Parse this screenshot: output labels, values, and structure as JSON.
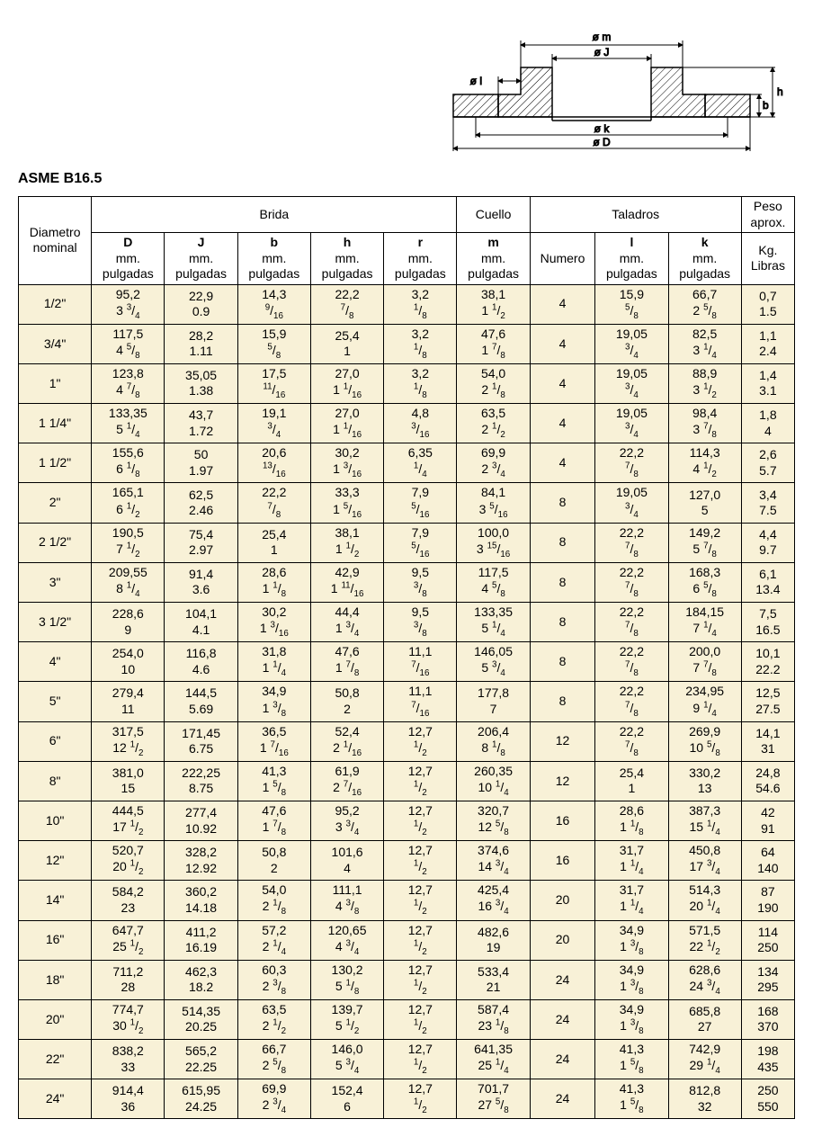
{
  "title": "ASME B16.5",
  "diagram_labels": {
    "om": "ø m",
    "oJ": "ø J",
    "ol": "ø l",
    "ok": "ø k",
    "oD": "ø D",
    "b": "b",
    "h": "h"
  },
  "headers": {
    "dia": "Diametro\nnominal",
    "brida": "Brida",
    "cuello": "Cuello",
    "taladros": "Taladros",
    "peso": "Peso\naprox.",
    "cols": {
      "D": {
        "sym": "D",
        "unit": "mm.\npulgadas"
      },
      "J": {
        "sym": "J",
        "unit": "mm.\npulgadas"
      },
      "b": {
        "sym": "b",
        "unit": "mm.\npulgadas"
      },
      "h": {
        "sym": "h",
        "unit": "mm.\npulgadas"
      },
      "r": {
        "sym": "r",
        "unit": "mm.\npulgadas"
      },
      "m": {
        "sym": "m",
        "unit": "mm.\npulgadas"
      },
      "num": {
        "sym": "",
        "unit": "Numero"
      },
      "l": {
        "sym": "l",
        "unit": "mm.\npulgadas"
      },
      "k": {
        "sym": "k",
        "unit": "mm.\npulgadas"
      },
      "peso": {
        "sym": "",
        "unit": "Kg.\nLibras"
      }
    }
  },
  "rows": [
    {
      "nom": "1/2\"",
      "D": {
        "mm": "95,2",
        "in": "3 3/4"
      },
      "J": {
        "mm": "22,9",
        "in": "0.9"
      },
      "b": {
        "mm": "14,3",
        "in": "9/16"
      },
      "h": {
        "mm": "22,2",
        "in": "7/8"
      },
      "r": {
        "mm": "3,2",
        "in": "1/8"
      },
      "m": {
        "mm": "38,1",
        "in": "1 1/2"
      },
      "num": "4",
      "l": {
        "mm": "15,9",
        "in": "5/8"
      },
      "k": {
        "mm": "66,7",
        "in": "2 5/8"
      },
      "peso": {
        "kg": "0,7",
        "lb": "1.5"
      }
    },
    {
      "nom": "3/4\"",
      "D": {
        "mm": "117,5",
        "in": "4 5/8"
      },
      "J": {
        "mm": "28,2",
        "in": "1.11"
      },
      "b": {
        "mm": "15,9",
        "in": "5/8"
      },
      "h": {
        "mm": "25,4",
        "in": "1"
      },
      "r": {
        "mm": "3,2",
        "in": "1/8"
      },
      "m": {
        "mm": "47,6",
        "in": "1 7/8"
      },
      "num": "4",
      "l": {
        "mm": "19,05",
        "in": "3/4"
      },
      "k": {
        "mm": "82,5",
        "in": "3 1/4"
      },
      "peso": {
        "kg": "1,1",
        "lb": "2.4"
      }
    },
    {
      "nom": "1\"",
      "D": {
        "mm": "123,8",
        "in": "4 7/8"
      },
      "J": {
        "mm": "35,05",
        "in": "1.38"
      },
      "b": {
        "mm": "17,5",
        "in": "11/16"
      },
      "h": {
        "mm": "27,0",
        "in": "1 1/16"
      },
      "r": {
        "mm": "3,2",
        "in": "1/8"
      },
      "m": {
        "mm": "54,0",
        "in": "2 1/8"
      },
      "num": "4",
      "l": {
        "mm": "19,05",
        "in": "3/4"
      },
      "k": {
        "mm": "88,9",
        "in": "3 1/2"
      },
      "peso": {
        "kg": "1,4",
        "lb": "3.1"
      }
    },
    {
      "nom": "1 1/4\"",
      "D": {
        "mm": "133,35",
        "in": "5 1/4"
      },
      "J": {
        "mm": "43,7",
        "in": "1.72"
      },
      "b": {
        "mm": "19,1",
        "in": "3/4"
      },
      "h": {
        "mm": "27,0",
        "in": "1 1/16"
      },
      "r": {
        "mm": "4,8",
        "in": "3/16"
      },
      "m": {
        "mm": "63,5",
        "in": "2 1/2"
      },
      "num": "4",
      "l": {
        "mm": "19,05",
        "in": "3/4"
      },
      "k": {
        "mm": "98,4",
        "in": "3 7/8"
      },
      "peso": {
        "kg": "1,8",
        "lb": "4"
      }
    },
    {
      "nom": "1 1/2\"",
      "D": {
        "mm": "155,6",
        "in": "6 1/8"
      },
      "J": {
        "mm": "50",
        "in": "1.97"
      },
      "b": {
        "mm": "20,6",
        "in": "13/16"
      },
      "h": {
        "mm": "30,2",
        "in": "1 3/16"
      },
      "r": {
        "mm": "6,35",
        "in": "1/4"
      },
      "m": {
        "mm": "69,9",
        "in": "2 3/4"
      },
      "num": "4",
      "l": {
        "mm": "22,2",
        "in": "7/8"
      },
      "k": {
        "mm": "114,3",
        "in": "4 1/2"
      },
      "peso": {
        "kg": "2,6",
        "lb": "5.7"
      }
    },
    {
      "nom": "2\"",
      "D": {
        "mm": "165,1",
        "in": "6 1/2"
      },
      "J": {
        "mm": "62,5",
        "in": "2.46"
      },
      "b": {
        "mm": "22,2",
        "in": "7/8"
      },
      "h": {
        "mm": "33,3",
        "in": "1 5/16"
      },
      "r": {
        "mm": "7,9",
        "in": "5/16"
      },
      "m": {
        "mm": "84,1",
        "in": "3 5/16"
      },
      "num": "8",
      "l": {
        "mm": "19,05",
        "in": "3/4"
      },
      "k": {
        "mm": "127,0",
        "in": "5"
      },
      "peso": {
        "kg": "3,4",
        "lb": "7.5"
      }
    },
    {
      "nom": "2 1/2\"",
      "D": {
        "mm": "190,5",
        "in": "7 1/2"
      },
      "J": {
        "mm": "75,4",
        "in": "2.97"
      },
      "b": {
        "mm": "25,4",
        "in": "1"
      },
      "h": {
        "mm": "38,1",
        "in": "1 1/2"
      },
      "r": {
        "mm": "7,9",
        "in": "5/16"
      },
      "m": {
        "mm": "100,0",
        "in": "3 15/16"
      },
      "num": "8",
      "l": {
        "mm": "22,2",
        "in": "7/8"
      },
      "k": {
        "mm": "149,2",
        "in": "5 7/8"
      },
      "peso": {
        "kg": "4,4",
        "lb": "9.7"
      }
    },
    {
      "nom": "3\"",
      "D": {
        "mm": "209,55",
        "in": "8 1/4"
      },
      "J": {
        "mm": "91,4",
        "in": "3.6"
      },
      "b": {
        "mm": "28,6",
        "in": "1 1/8"
      },
      "h": {
        "mm": "42,9",
        "in": "1 11/16"
      },
      "r": {
        "mm": "9,5",
        "in": "3/8"
      },
      "m": {
        "mm": "117,5",
        "in": "4 5/8"
      },
      "num": "8",
      "l": {
        "mm": "22,2",
        "in": "7/8"
      },
      "k": {
        "mm": "168,3",
        "in": "6 5/8"
      },
      "peso": {
        "kg": "6,1",
        "lb": "13.4"
      }
    },
    {
      "nom": "3 1/2\"",
      "D": {
        "mm": "228,6",
        "in": "9"
      },
      "J": {
        "mm": "104,1",
        "in": "4.1"
      },
      "b": {
        "mm": "30,2",
        "in": "1 3/16"
      },
      "h": {
        "mm": "44,4",
        "in": "1 3/4"
      },
      "r": {
        "mm": "9,5",
        "in": "3/8"
      },
      "m": {
        "mm": "133,35",
        "in": "5 1/4"
      },
      "num": "8",
      "l": {
        "mm": "22,2",
        "in": "7/8"
      },
      "k": {
        "mm": "184,15",
        "in": "7 1/4"
      },
      "peso": {
        "kg": "7,5",
        "lb": "16.5"
      }
    },
    {
      "nom": "4\"",
      "D": {
        "mm": "254,0",
        "in": "10"
      },
      "J": {
        "mm": "116,8",
        "in": "4.6"
      },
      "b": {
        "mm": "31,8",
        "in": "1 1/4"
      },
      "h": {
        "mm": "47,6",
        "in": "1 7/8"
      },
      "r": {
        "mm": "11,1",
        "in": "7/16"
      },
      "m": {
        "mm": "146,05",
        "in": "5 3/4"
      },
      "num": "8",
      "l": {
        "mm": "22,2",
        "in": "7/8"
      },
      "k": {
        "mm": "200,0",
        "in": "7 7/8"
      },
      "peso": {
        "kg": "10,1",
        "lb": "22.2"
      }
    },
    {
      "nom": "5\"",
      "D": {
        "mm": "279,4",
        "in": "11"
      },
      "J": {
        "mm": "144,5",
        "in": "5.69"
      },
      "b": {
        "mm": "34,9",
        "in": "1 3/8"
      },
      "h": {
        "mm": "50,8",
        "in": "2"
      },
      "r": {
        "mm": "11,1",
        "in": "7/16"
      },
      "m": {
        "mm": "177,8",
        "in": "7"
      },
      "num": "8",
      "l": {
        "mm": "22,2",
        "in": "7/8"
      },
      "k": {
        "mm": "234,95",
        "in": "9 1/4"
      },
      "peso": {
        "kg": "12,5",
        "lb": "27.5"
      }
    },
    {
      "nom": "6\"",
      "D": {
        "mm": "317,5",
        "in": "12 1/2"
      },
      "J": {
        "mm": "171,45",
        "in": "6.75"
      },
      "b": {
        "mm": "36,5",
        "in": "1 7/16"
      },
      "h": {
        "mm": "52,4",
        "in": "2 1/16"
      },
      "r": {
        "mm": "12,7",
        "in": "1/2"
      },
      "m": {
        "mm": "206,4",
        "in": "8 1/8"
      },
      "num": "12",
      "l": {
        "mm": "22,2",
        "in": "7/8"
      },
      "k": {
        "mm": "269,9",
        "in": "10 5/8"
      },
      "peso": {
        "kg": "14,1",
        "lb": "31"
      }
    },
    {
      "nom": "8\"",
      "D": {
        "mm": "381,0",
        "in": "15"
      },
      "J": {
        "mm": "222,25",
        "in": "8.75"
      },
      "b": {
        "mm": "41,3",
        "in": "1 5/8"
      },
      "h": {
        "mm": "61,9",
        "in": "2 7/16"
      },
      "r": {
        "mm": "12,7",
        "in": "1/2"
      },
      "m": {
        "mm": "260,35",
        "in": "10 1/4"
      },
      "num": "12",
      "l": {
        "mm": "25,4",
        "in": "1"
      },
      "k": {
        "mm": "330,2",
        "in": "13"
      },
      "peso": {
        "kg": "24,8",
        "lb": "54.6"
      }
    },
    {
      "nom": "10\"",
      "D": {
        "mm": "444,5",
        "in": "17 1/2"
      },
      "J": {
        "mm": "277,4",
        "in": "10.92"
      },
      "b": {
        "mm": "47,6",
        "in": "1 7/8"
      },
      "h": {
        "mm": "95,2",
        "in": "3 3/4"
      },
      "r": {
        "mm": "12,7",
        "in": "1/2"
      },
      "m": {
        "mm": "320,7",
        "in": "12 5/8"
      },
      "num": "16",
      "l": {
        "mm": "28,6",
        "in": "1 1/8"
      },
      "k": {
        "mm": "387,3",
        "in": "15 1/4"
      },
      "peso": {
        "kg": "42",
        "lb": "91"
      }
    },
    {
      "nom": "12\"",
      "D": {
        "mm": "520,7",
        "in": "20 1/2"
      },
      "J": {
        "mm": "328,2",
        "in": "12.92"
      },
      "b": {
        "mm": "50,8",
        "in": "2"
      },
      "h": {
        "mm": "101,6",
        "in": "4"
      },
      "r": {
        "mm": "12,7",
        "in": "1/2"
      },
      "m": {
        "mm": "374,6",
        "in": "14 3/4"
      },
      "num": "16",
      "l": {
        "mm": "31,7",
        "in": "1 1/4"
      },
      "k": {
        "mm": "450,8",
        "in": "17 3/4"
      },
      "peso": {
        "kg": "64",
        "lb": "140"
      }
    },
    {
      "nom": "14\"",
      "D": {
        "mm": "584,2",
        "in": "23"
      },
      "J": {
        "mm": "360,2",
        "in": "14.18"
      },
      "b": {
        "mm": "54,0",
        "in": "2 1/8"
      },
      "h": {
        "mm": "111,1",
        "in": "4 3/8"
      },
      "r": {
        "mm": "12,7",
        "in": "1/2"
      },
      "m": {
        "mm": "425,4",
        "in": "16 3/4"
      },
      "num": "20",
      "l": {
        "mm": "31,7",
        "in": "1 1/4"
      },
      "k": {
        "mm": "514,3",
        "in": "20 1/4"
      },
      "peso": {
        "kg": "87",
        "lb": "190"
      }
    },
    {
      "nom": "16\"",
      "D": {
        "mm": "647,7",
        "in": "25 1/2"
      },
      "J": {
        "mm": "411,2",
        "in": "16.19"
      },
      "b": {
        "mm": "57,2",
        "in": "2 1/4"
      },
      "h": {
        "mm": "120,65",
        "in": "4 3/4"
      },
      "r": {
        "mm": "12,7",
        "in": "1/2"
      },
      "m": {
        "mm": "482,6",
        "in": "19"
      },
      "num": "20",
      "l": {
        "mm": "34,9",
        "in": "1 3/8"
      },
      "k": {
        "mm": "571,5",
        "in": "22 1/2"
      },
      "peso": {
        "kg": "114",
        "lb": "250"
      }
    },
    {
      "nom": "18\"",
      "D": {
        "mm": "711,2",
        "in": "28"
      },
      "J": {
        "mm": "462,3",
        "in": "18.2"
      },
      "b": {
        "mm": "60,3",
        "in": "2 3/8"
      },
      "h": {
        "mm": "130,2",
        "in": "5 1/8"
      },
      "r": {
        "mm": "12,7",
        "in": "1/2"
      },
      "m": {
        "mm": "533,4",
        "in": "21"
      },
      "num": "24",
      "l": {
        "mm": "34,9",
        "in": "1 3/8"
      },
      "k": {
        "mm": "628,6",
        "in": "24 3/4"
      },
      "peso": {
        "kg": "134",
        "lb": "295"
      }
    },
    {
      "nom": "20\"",
      "D": {
        "mm": "774,7",
        "in": "30 1/2"
      },
      "J": {
        "mm": "514,35",
        "in": "20.25"
      },
      "b": {
        "mm": "63,5",
        "in": "2 1/2"
      },
      "h": {
        "mm": "139,7",
        "in": "5 1/2"
      },
      "r": {
        "mm": "12,7",
        "in": "1/2"
      },
      "m": {
        "mm": "587,4",
        "in": "23 1/8"
      },
      "num": "24",
      "l": {
        "mm": "34,9",
        "in": "1 3/8"
      },
      "k": {
        "mm": "685,8",
        "in": "27"
      },
      "peso": {
        "kg": "168",
        "lb": "370"
      }
    },
    {
      "nom": "22\"",
      "D": {
        "mm": "838,2",
        "in": "33"
      },
      "J": {
        "mm": "565,2",
        "in": "22.25"
      },
      "b": {
        "mm": "66,7",
        "in": "2 5/8"
      },
      "h": {
        "mm": "146,0",
        "in": "5 3/4"
      },
      "r": {
        "mm": "12,7",
        "in": "1/2"
      },
      "m": {
        "mm": "641,35",
        "in": "25 1/4"
      },
      "num": "24",
      "l": {
        "mm": "41,3",
        "in": "1 5/8"
      },
      "k": {
        "mm": "742,9",
        "in": "29 1/4"
      },
      "peso": {
        "kg": "198",
        "lb": "435"
      }
    },
    {
      "nom": "24\"",
      "D": {
        "mm": "914,4",
        "in": "36"
      },
      "J": {
        "mm": "615,95",
        "in": "24.25"
      },
      "b": {
        "mm": "69,9",
        "in": "2 3/4"
      },
      "h": {
        "mm": "152,4",
        "in": "6"
      },
      "r": {
        "mm": "12,7",
        "in": "1/2"
      },
      "m": {
        "mm": "701,7",
        "in": "27 5/8"
      },
      "num": "24",
      "l": {
        "mm": "41,3",
        "in": "1 5/8"
      },
      "k": {
        "mm": "812,8",
        "in": "32"
      },
      "peso": {
        "kg": "250",
        "lb": "550"
      }
    }
  ],
  "colors": {
    "row_bg": "#f8f1d7",
    "border": "#000000",
    "text": "#000000"
  }
}
